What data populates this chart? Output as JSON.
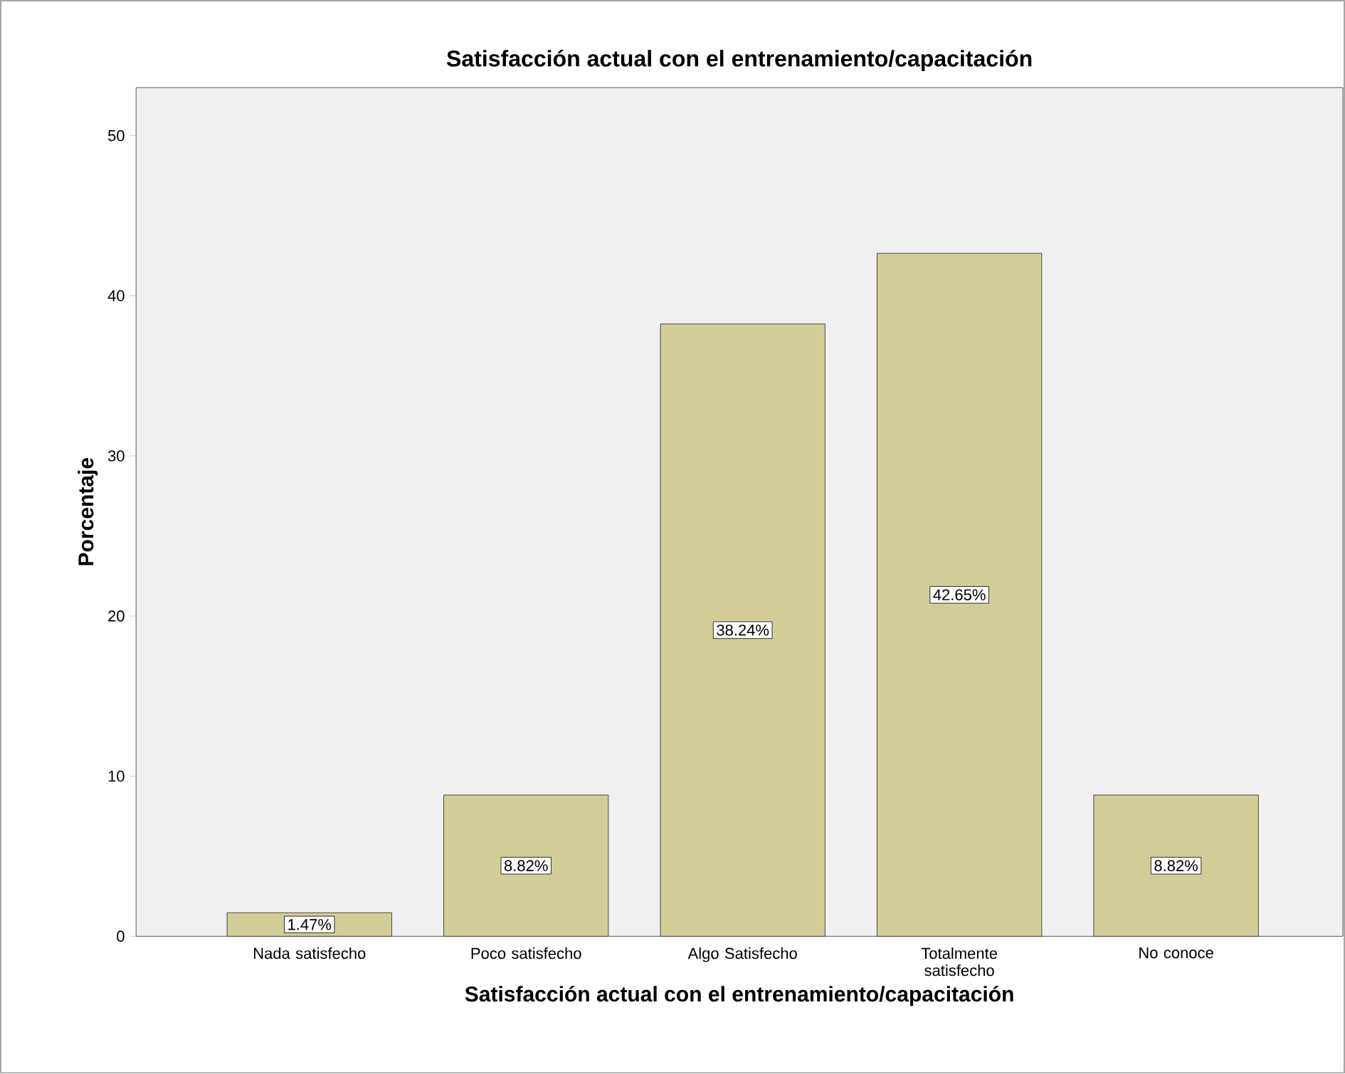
{
  "chart_data": {
    "type": "bar",
    "title": "Satisfacción actual con el entrenamiento/capacitación",
    "xlabel": "Satisfacción actual con el entrenamiento/capacitación",
    "ylabel": "Porcentaje",
    "categories": [
      "Nada satisfecho",
      "Poco satisfecho",
      "Algo Satisfecho",
      "Totalmente satisfecho",
      "No conoce"
    ],
    "values": [
      1.47,
      8.82,
      38.24,
      42.65,
      8.82
    ],
    "value_labels": [
      "1.47%",
      "8.82%",
      "38.24%",
      "42.65%",
      "8.82%"
    ],
    "color": "#d3ce97",
    "ylim": [
      0,
      53
    ],
    "yticks": [
      0,
      10,
      20,
      30,
      40,
      50
    ]
  }
}
